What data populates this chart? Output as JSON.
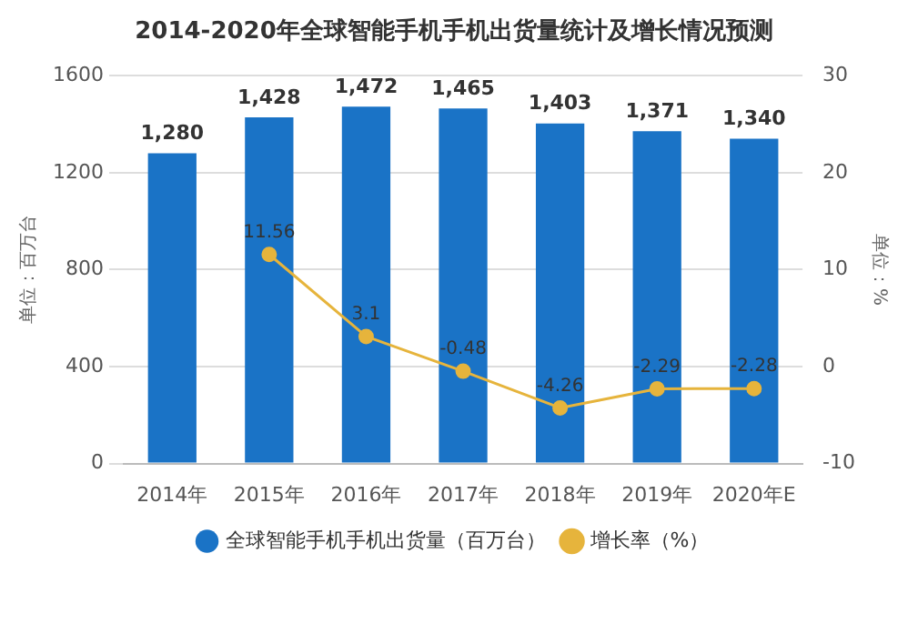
{
  "chart_data": {
    "type": "bar",
    "title": "2014-2020年全球智能手机手机出货量统计及增长情况预测",
    "categories": [
      "2014年",
      "2015年",
      "2016年",
      "2017年",
      "2018年",
      "2019年",
      "2020年E"
    ],
    "series": [
      {
        "name": "全球智能手机手机出货量（百万台）",
        "color": "#1a73c6",
        "values": [
          1280,
          1428,
          1472,
          1465,
          1403,
          1371,
          1340
        ],
        "value_labels": [
          "1,280",
          "1,428",
          "1,472",
          "1,465",
          "1,403",
          "1,371",
          "1,340"
        ]
      },
      {
        "name": "增长率（%）",
        "type": "line",
        "axis": "y2",
        "color": "#e6b43c",
        "marker": "circle",
        "values": [
          null,
          11.56,
          3.1,
          -0.48,
          -4.26,
          -2.29,
          -2.28
        ],
        "value_labels": [
          null,
          "11.56",
          "3.1",
          "-0.48",
          "-4.26",
          "-2.29",
          "-2.28"
        ]
      }
    ],
    "ylabel": "单位：百万台",
    "y2label": "单位：%",
    "ylim": [
      0,
      1600
    ],
    "yticks": [
      0,
      400,
      800,
      1200,
      1600
    ],
    "y2lim": [
      -10,
      30
    ],
    "y2ticks": [
      -10,
      0,
      10,
      20,
      30
    ],
    "grid": "y",
    "legend": "bottom"
  }
}
